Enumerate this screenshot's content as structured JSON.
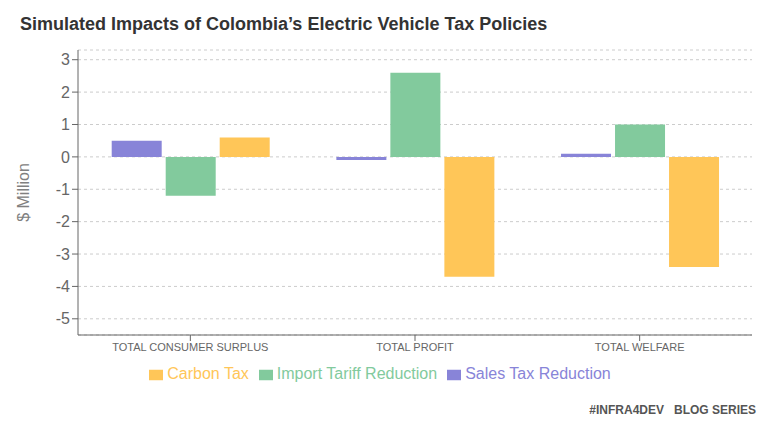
{
  "chart_data": {
    "type": "bar",
    "title": "Simulated Impacts of Colombia’s Electric Vehicle Tax Policies",
    "categories": [
      "TOTAL CONSUMER SURPLUS",
      "TOTAL PROFIT",
      "TOTAL WELFARE"
    ],
    "series": [
      {
        "name": "Sales Tax Reduction",
        "values": [
          0.5,
          -0.1,
          0.1
        ]
      },
      {
        "name": "Import Tariff Reduction",
        "values": [
          -1.2,
          2.6,
          1.0
        ]
      },
      {
        "name": "Carbon Tax",
        "values": [
          0.6,
          -3.7,
          -3.4
        ]
      }
    ],
    "ylabel": "$ Million",
    "ylim": [
      -5.5,
      3.3
    ],
    "yticks": [
      -5,
      -4,
      -3,
      -2,
      -1,
      0,
      1,
      2,
      3
    ],
    "grid": true,
    "legend": "bottom",
    "annotations": [
      "#INFRA4DEV",
      "BLOG SERIES"
    ]
  }
}
